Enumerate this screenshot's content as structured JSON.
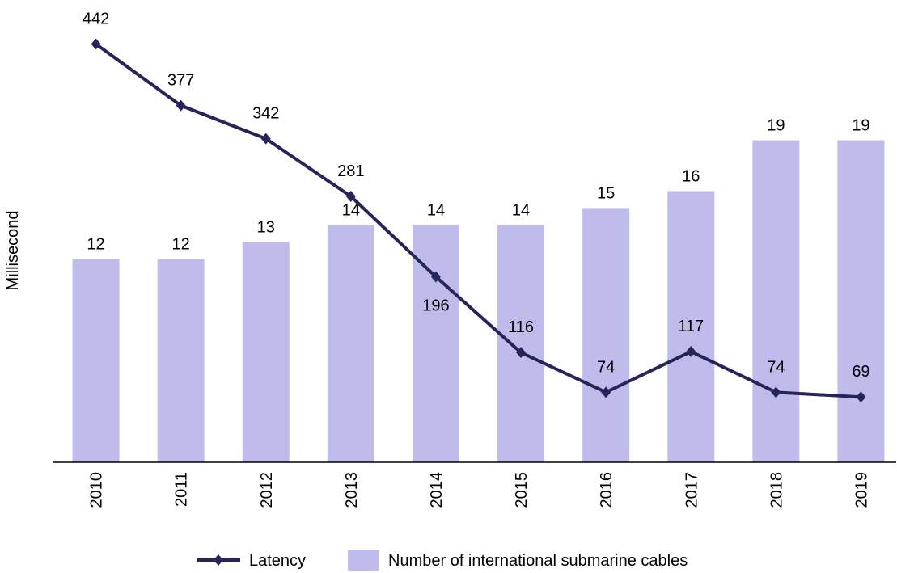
{
  "chart_data": {
    "type": "combo",
    "y_label": "Millisecond",
    "categories": [
      "2010",
      "2011",
      "2012",
      "2013",
      "2014",
      "2015",
      "2016",
      "2017",
      "2018",
      "2019"
    ],
    "series": [
      {
        "name": "Latency",
        "type": "line",
        "color": "#27245c",
        "values": [
          442,
          377,
          342,
          281,
          196,
          116,
          74,
          117,
          74,
          69
        ]
      },
      {
        "name": "Number of international submarine cables",
        "type": "bar",
        "axis": "y2",
        "color": "#bfbcec",
        "values": [
          12,
          12,
          13,
          14,
          14,
          14,
          15,
          16,
          19,
          19
        ]
      }
    ],
    "ylim": [
      0,
      480
    ],
    "y2lim": [
      0,
      26.8
    ],
    "grid": false,
    "legend": "bottom"
  }
}
